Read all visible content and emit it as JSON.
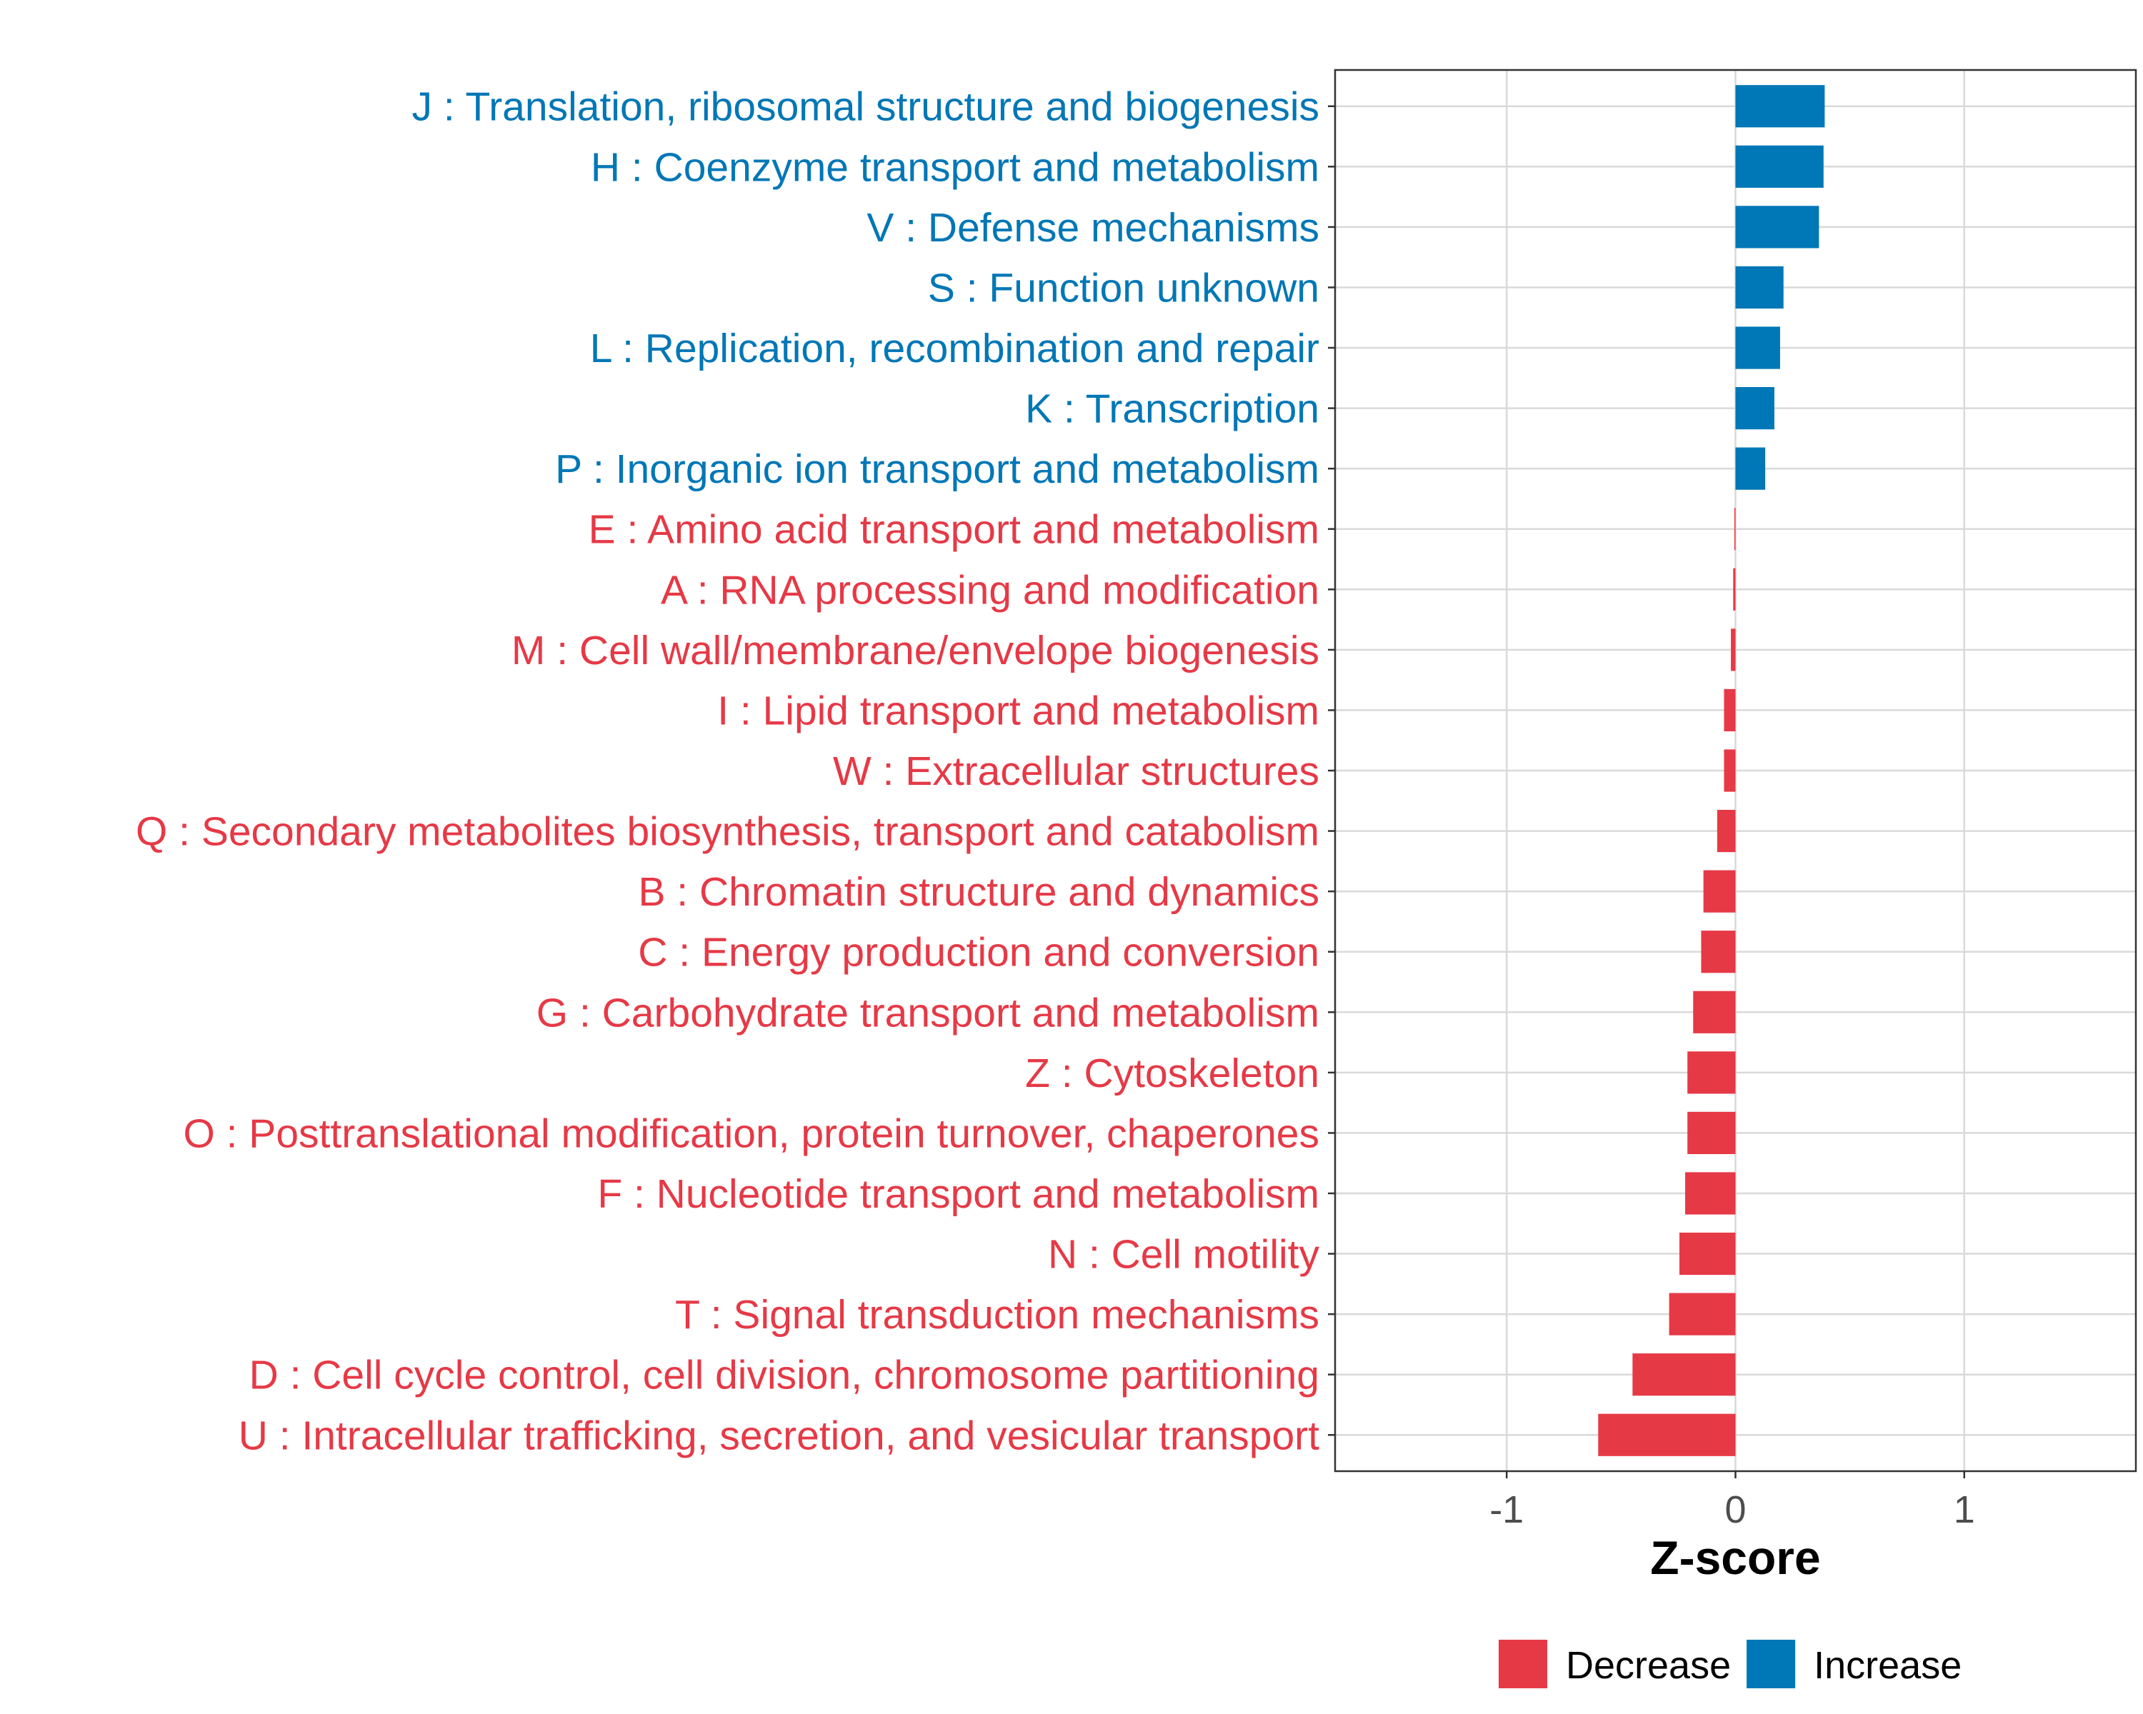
{
  "chart_data": {
    "type": "bar",
    "orientation": "horizontal",
    "xlabel": "Z-score",
    "ylabel": "",
    "xlim": [
      -1.75,
      1.75
    ],
    "xticks": [
      -1,
      0,
      1
    ],
    "xtick_labels": [
      "-1",
      "0",
      "1"
    ],
    "grid": true,
    "legend_position": "bottom-right",
    "legend": [
      {
        "key": "decrease",
        "label": "Decrease",
        "color": "#E63946"
      },
      {
        "key": "increase",
        "label": "Increase",
        "color": "#0077B6"
      }
    ],
    "bars": [
      {
        "label": "J : Translation, ribosomal structure and biogenesis",
        "value": 0.39,
        "group": "increase"
      },
      {
        "label": "H : Coenzyme transport and metabolism",
        "value": 0.385,
        "group": "increase"
      },
      {
        "label": "V : Defense mechanisms",
        "value": 0.365,
        "group": "increase"
      },
      {
        "label": "S : Function unknown",
        "value": 0.21,
        "group": "increase"
      },
      {
        "label": "L : Replication, recombination and repair",
        "value": 0.195,
        "group": "increase"
      },
      {
        "label": "K : Transcription",
        "value": 0.17,
        "group": "increase"
      },
      {
        "label": "P : Inorganic ion transport and metabolism",
        "value": 0.13,
        "group": "increase"
      },
      {
        "label": "E : Amino acid transport and metabolism",
        "value": -0.005,
        "group": "decrease"
      },
      {
        "label": "A : RNA processing and modification",
        "value": -0.01,
        "group": "decrease"
      },
      {
        "label": "M : Cell wall/membrane/envelope biogenesis",
        "value": -0.02,
        "group": "decrease"
      },
      {
        "label": "I : Lipid transport and metabolism",
        "value": -0.05,
        "group": "decrease"
      },
      {
        "label": "W : Extracellular structures",
        "value": -0.05,
        "group": "decrease"
      },
      {
        "label": "Q : Secondary metabolites biosynthesis, transport and catabolism",
        "value": -0.08,
        "group": "decrease"
      },
      {
        "label": "B : Chromatin structure and dynamics",
        "value": -0.14,
        "group": "decrease"
      },
      {
        "label": "C : Energy production and conversion",
        "value": -0.15,
        "group": "decrease"
      },
      {
        "label": "G : Carbohydrate transport and metabolism",
        "value": -0.185,
        "group": "decrease"
      },
      {
        "label": "Z : Cytoskeleton",
        "value": -0.21,
        "group": "decrease"
      },
      {
        "label": "O : Posttranslational modification, protein turnover, chaperones",
        "value": -0.21,
        "group": "decrease"
      },
      {
        "label": "F : Nucleotide transport and metabolism",
        "value": -0.22,
        "group": "decrease"
      },
      {
        "label": "N : Cell motility",
        "value": -0.245,
        "group": "decrease"
      },
      {
        "label": "T : Signal transduction mechanisms",
        "value": -0.29,
        "group": "decrease"
      },
      {
        "label": "D : Cell cycle control, cell division, chromosome partitioning",
        "value": -0.45,
        "group": "decrease"
      },
      {
        "label": "U : Intracellular trafficking, secretion, and vesicular transport",
        "value": -0.6,
        "group": "decrease"
      }
    ]
  }
}
